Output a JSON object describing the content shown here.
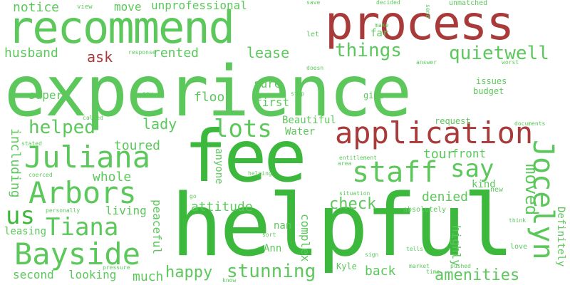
{
  "colors": {
    "background": "#ffffff",
    "positive": "#5cc85c",
    "positive_dark": "#3cb83c",
    "negative": "#a83a3a"
  },
  "words": [
    "experience",
    "helpful",
    "fee",
    "recommend",
    "process",
    "application",
    "staff",
    "Arbors",
    "Bayside",
    "Juliana",
    "Jocelyn",
    "Tiana",
    "us",
    "lots",
    "things",
    "quietwell",
    "say",
    "helped",
    "moved",
    "happy",
    "stunning",
    "amenities",
    "attitude",
    "check",
    "denied",
    "whole",
    "toured",
    "lady",
    "ask",
    "husband",
    "rented",
    "lease",
    "unprofessional",
    "notice",
    "move",
    "sure",
    "first",
    "floor",
    "super",
    "including",
    "leasing",
    "living",
    "peaceful",
    "Beautiful",
    "Water",
    "tour",
    "front",
    "kind",
    "highly",
    "Definitely",
    "complex",
    "nan",
    "Ann",
    "much",
    "second",
    "looking",
    "back",
    "Kyle",
    "anyone",
    "issues",
    "budget",
    "give",
    "request",
    "documents",
    "absolutely",
    "love",
    "think",
    "far",
    "let",
    "make",
    "save",
    "decided",
    "send",
    "unmatched",
    "view",
    "response",
    "doesn",
    "answer",
    "worst",
    "pay",
    "called",
    "stated",
    "coerced",
    "personally",
    "stop",
    "entitlement",
    "area",
    "helping",
    "go",
    "situation",
    "new",
    "sort",
    "pressure",
    "know",
    "market",
    "pushed",
    "time",
    "sign",
    "tells"
  ]
}
